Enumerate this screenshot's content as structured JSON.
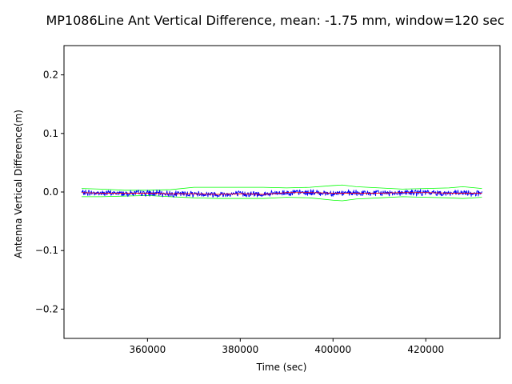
{
  "chart_data": {
    "type": "line",
    "title": "MP1086Line Ant Vertical Difference, mean: -1.75 mm, window=120 sec",
    "xlabel": "Time (sec)",
    "ylabel": "Antenna Vertical Difference(m)",
    "xlim": [
      342000,
      436000
    ],
    "ylim": [
      -0.25,
      0.25
    ],
    "xticks": [
      360000,
      380000,
      400000,
      420000
    ],
    "xtick_labels": [
      "360000",
      "380000",
      "400000",
      "420000"
    ],
    "yticks": [
      -0.2,
      -0.1,
      0.0,
      0.1,
      0.2
    ],
    "ytick_labels": [
      "−0.2",
      "−0.1",
      "0.0",
      "0.1",
      "0.2"
    ],
    "grid": false,
    "x_start": 345800,
    "x_end": 432100,
    "series": [
      {
        "color": "#0000ff",
        "style": "noisy",
        "mean": -0.00175,
        "noise_amplitude": 0.004
      },
      {
        "color": "#ff0000",
        "style": "rolling-mean",
        "x": [
          345800,
          350000,
          355000,
          360000,
          365000,
          370000,
          375000,
          380000,
          385000,
          390000,
          395000,
          400000,
          405000,
          410000,
          415000,
          420000,
          425000,
          430000,
          432100
        ],
        "y": [
          -0.001,
          -0.002,
          -0.002,
          -0.002,
          -0.003,
          -0.003,
          -0.004,
          -0.003,
          -0.004,
          -0.001,
          -0.001,
          -0.002,
          -0.002,
          -0.002,
          -0.001,
          -0.001,
          -0.002,
          -0.002,
          -0.002
        ]
      },
      {
        "color": "#00ff00",
        "style": "upper-envelope",
        "x": [
          345800,
          350000,
          355000,
          360000,
          365000,
          370000,
          375000,
          380000,
          385000,
          390000,
          395000,
          400000,
          402000,
          405000,
          410000,
          415000,
          420000,
          425000,
          428000,
          432100
        ],
        "y": [
          0.006,
          0.005,
          0.003,
          0.003,
          0.004,
          0.008,
          0.008,
          0.008,
          0.008,
          0.007,
          0.008,
          0.011,
          0.012,
          0.009,
          0.007,
          0.005,
          0.006,
          0.007,
          0.009,
          0.006
        ]
      },
      {
        "color": "#00ff00",
        "style": "lower-envelope",
        "x": [
          345800,
          350000,
          355000,
          360000,
          365000,
          370000,
          375000,
          380000,
          385000,
          390000,
          395000,
          400000,
          402000,
          405000,
          410000,
          415000,
          420000,
          425000,
          428000,
          432100
        ],
        "y": [
          -0.008,
          -0.008,
          -0.007,
          -0.006,
          -0.008,
          -0.01,
          -0.011,
          -0.011,
          -0.011,
          -0.009,
          -0.01,
          -0.014,
          -0.015,
          -0.012,
          -0.01,
          -0.008,
          -0.009,
          -0.01,
          -0.011,
          -0.009
        ]
      }
    ]
  }
}
